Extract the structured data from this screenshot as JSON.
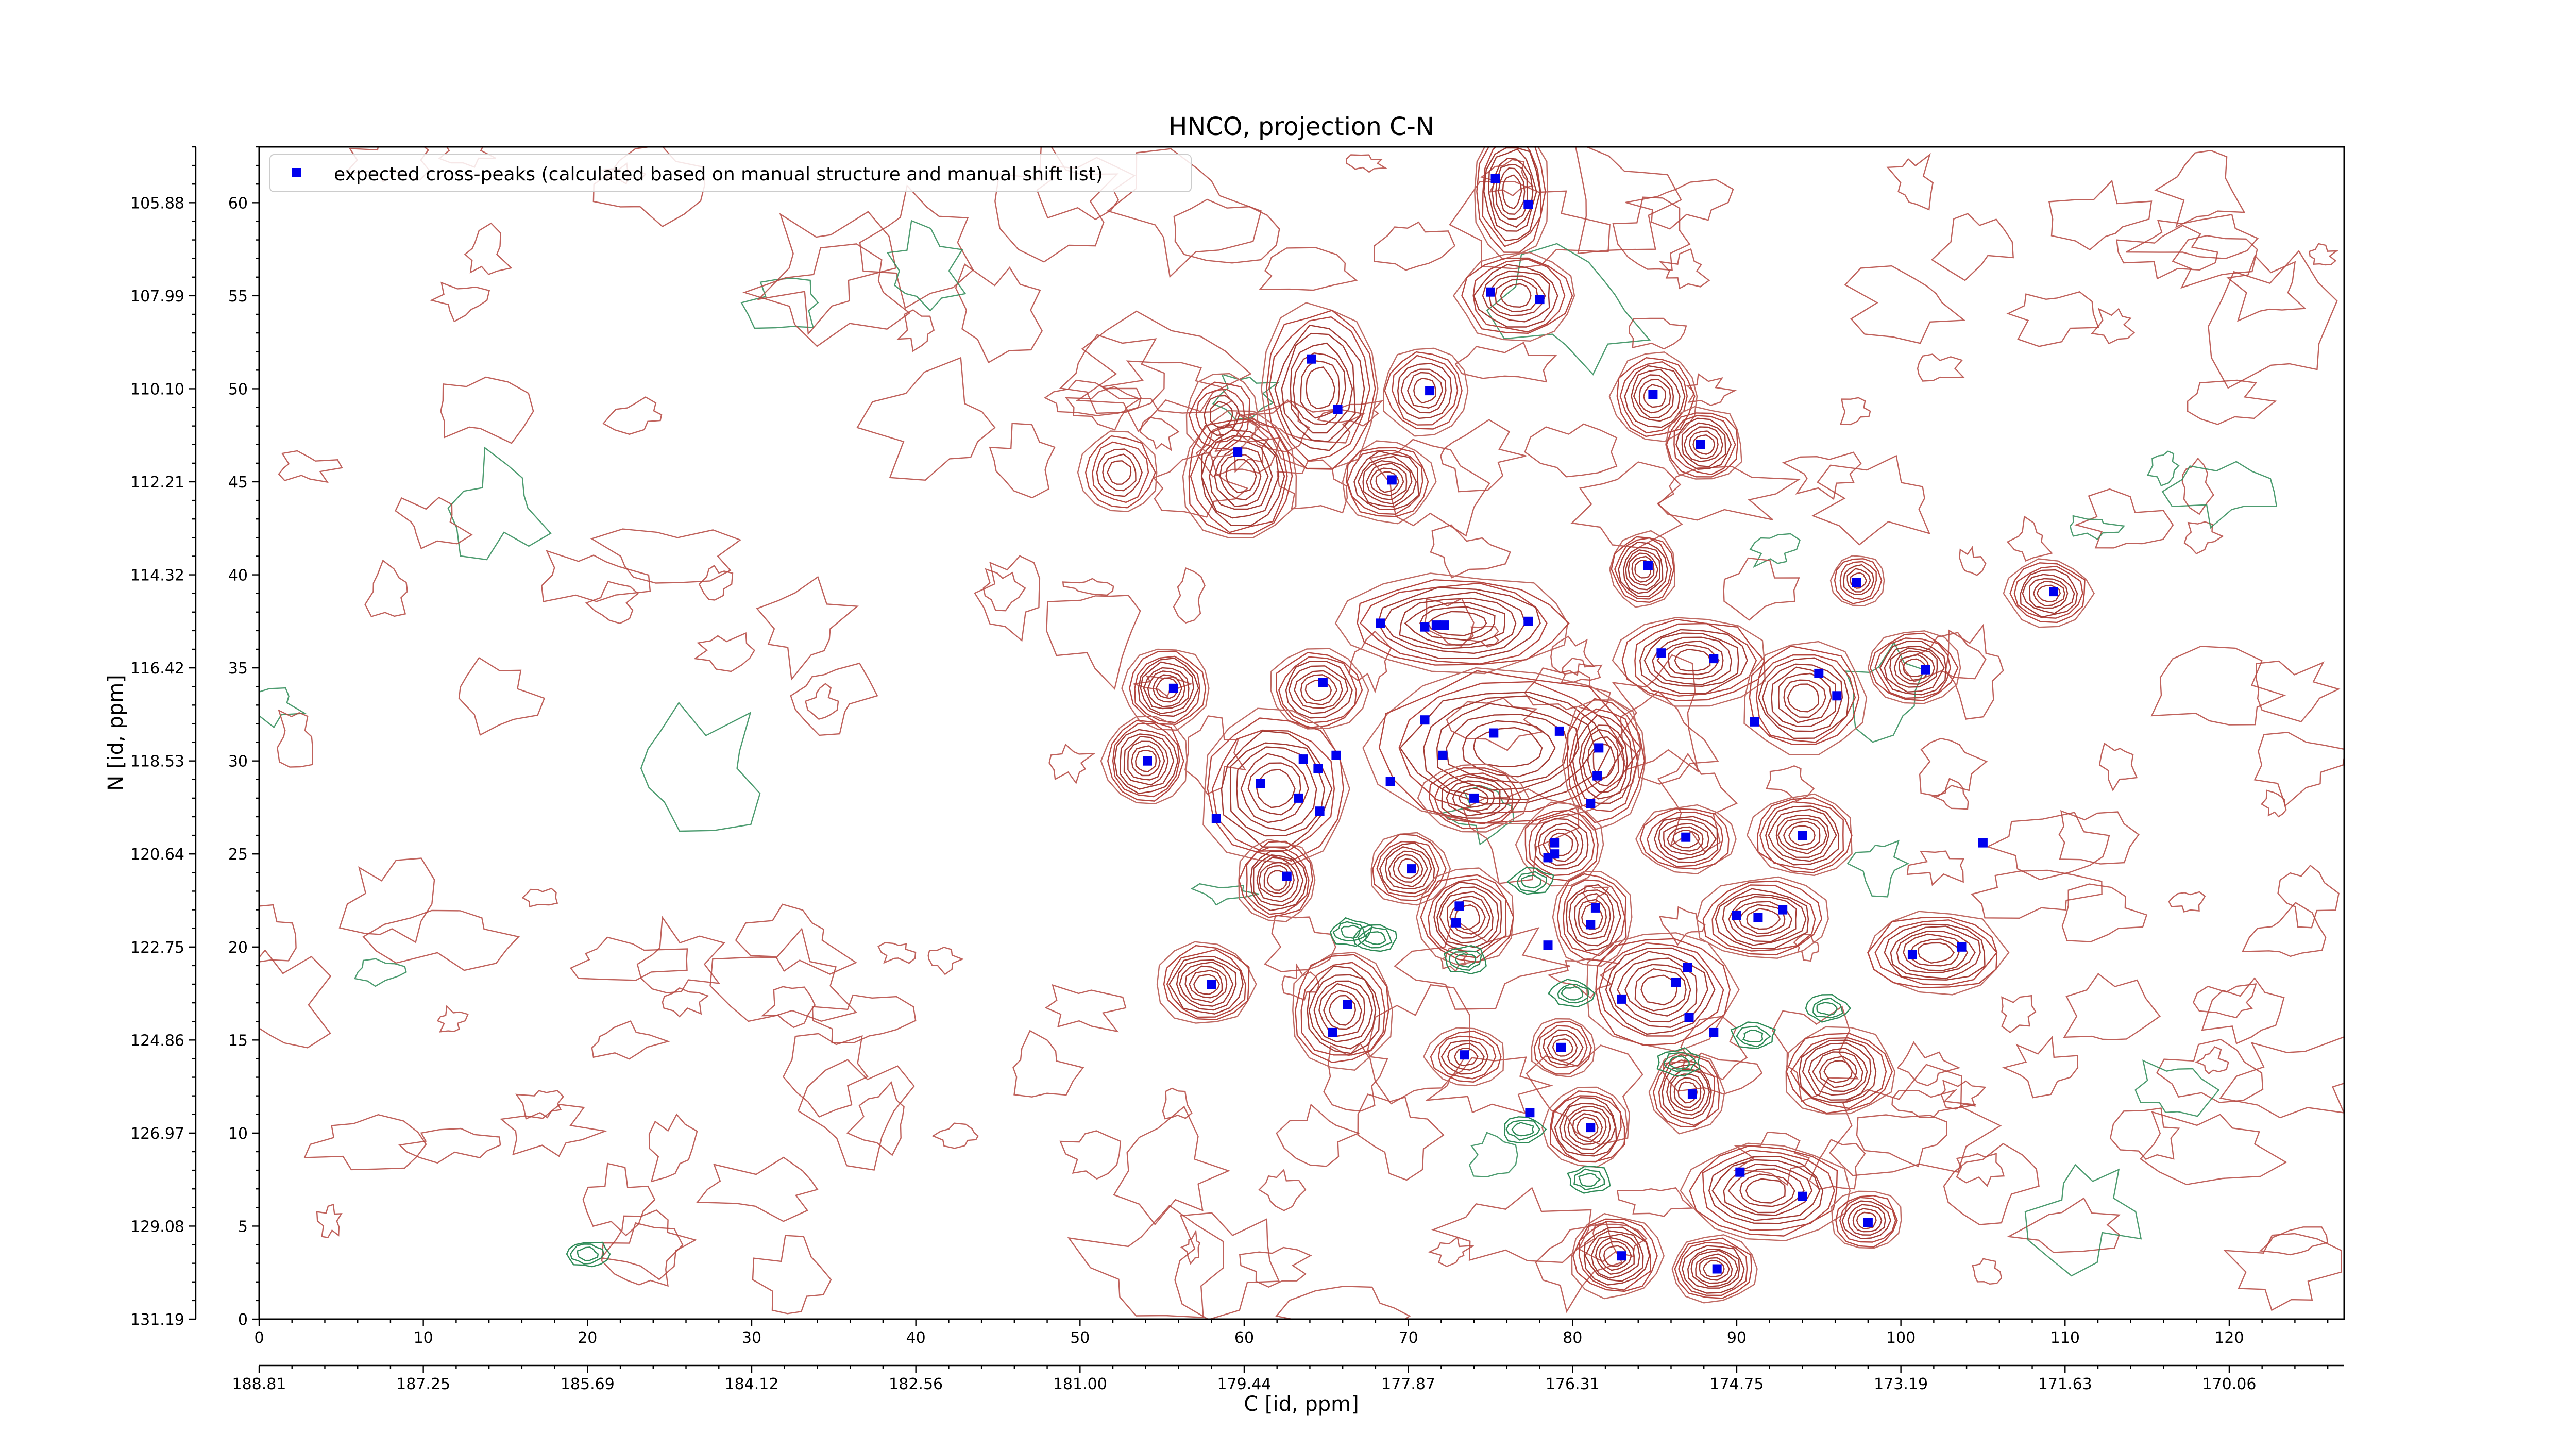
{
  "chart_data": {
    "type": "scatter",
    "title": "HNCO, projection C-N",
    "xlabel": "C [id, ppm]",
    "ylabel": "N [id, ppm]",
    "xlim": [
      0,
      127
    ],
    "ylim": [
      0,
      63
    ],
    "x_ticks": [
      0,
      10,
      20,
      30,
      40,
      50,
      60,
      70,
      80,
      90,
      100,
      110,
      120
    ],
    "x_ppm_labels": [
      "188.81",
      "187.25",
      "185.69",
      "184.12",
      "182.56",
      "181.00",
      "179.44",
      "177.87",
      "176.31",
      "174.75",
      "173.19",
      "171.63",
      "170.06"
    ],
    "y_ticks": [
      0,
      5,
      10,
      15,
      20,
      25,
      30,
      35,
      40,
      45,
      50,
      55,
      60
    ],
    "y_ppm_labels": [
      "131.19",
      "129.08",
      "126.97",
      "124.86",
      "122.75",
      "120.64",
      "118.53",
      "116.42",
      "114.32",
      "112.21",
      "110.10",
      "107.99",
      "105.88"
    ],
    "grid": false,
    "legend_position": "top-left",
    "series": [
      {
        "name": "expected cross-peaks (calculated based on manual structure and manual shift list)",
        "color": "#0000ee",
        "marker": "square",
        "points": [
          [
            75.3,
            61.3
          ],
          [
            77.3,
            59.9
          ],
          [
            75.0,
            55.2
          ],
          [
            78.0,
            54.8
          ],
          [
            64.1,
            51.6
          ],
          [
            65.7,
            48.9
          ],
          [
            71.3,
            49.9
          ],
          [
            84.9,
            49.7
          ],
          [
            87.8,
            47.0
          ],
          [
            59.6,
            46.6
          ],
          [
            69.0,
            45.1
          ],
          [
            84.6,
            40.5
          ],
          [
            97.3,
            39.6
          ],
          [
            109.3,
            39.1
          ],
          [
            68.3,
            37.4
          ],
          [
            71.0,
            37.2
          ],
          [
            71.7,
            37.3
          ],
          [
            72.2,
            37.3
          ],
          [
            77.3,
            37.5
          ],
          [
            85.4,
            35.8
          ],
          [
            88.6,
            35.5
          ],
          [
            95.0,
            34.7
          ],
          [
            101.5,
            34.9
          ],
          [
            55.7,
            33.9
          ],
          [
            64.8,
            34.2
          ],
          [
            96.1,
            33.5
          ],
          [
            91.1,
            32.1
          ],
          [
            71.0,
            32.2
          ],
          [
            75.2,
            31.5
          ],
          [
            79.2,
            31.6
          ],
          [
            81.6,
            30.7
          ],
          [
            54.1,
            30.0
          ],
          [
            61.0,
            28.8
          ],
          [
            63.6,
            30.1
          ],
          [
            64.5,
            29.6
          ],
          [
            65.6,
            30.3
          ],
          [
            68.9,
            28.9
          ],
          [
            72.1,
            30.3
          ],
          [
            81.5,
            29.2
          ],
          [
            63.3,
            28.0
          ],
          [
            64.6,
            27.3
          ],
          [
            58.3,
            26.9
          ],
          [
            74.0,
            28.0
          ],
          [
            81.1,
            27.7
          ],
          [
            78.9,
            25.6
          ],
          [
            78.5,
            24.8
          ],
          [
            78.9,
            25.0
          ],
          [
            86.9,
            25.9
          ],
          [
            94.0,
            26.0
          ],
          [
            105.0,
            25.6
          ],
          [
            62.6,
            23.8
          ],
          [
            70.2,
            24.2
          ],
          [
            73.1,
            22.2
          ],
          [
            72.9,
            21.3
          ],
          [
            81.4,
            22.1
          ],
          [
            81.1,
            21.2
          ],
          [
            90.0,
            21.7
          ],
          [
            91.3,
            21.6
          ],
          [
            92.8,
            22.0
          ],
          [
            78.5,
            20.1
          ],
          [
            100.7,
            19.6
          ],
          [
            103.7,
            20.0
          ],
          [
            58.0,
            18.0
          ],
          [
            87.0,
            18.9
          ],
          [
            86.3,
            18.1
          ],
          [
            83.0,
            17.2
          ],
          [
            66.3,
            16.9
          ],
          [
            65.4,
            15.4
          ],
          [
            87.1,
            16.2
          ],
          [
            88.6,
            15.4
          ],
          [
            73.4,
            14.2
          ],
          [
            79.3,
            14.6
          ],
          [
            87.3,
            12.1
          ],
          [
            77.4,
            11.1
          ],
          [
            81.1,
            10.3
          ],
          [
            90.2,
            7.9
          ],
          [
            94.0,
            6.6
          ],
          [
            98.0,
            5.2
          ],
          [
            83.0,
            3.4
          ],
          [
            88.8,
            2.7
          ]
        ]
      }
    ],
    "contours": {
      "positive_color": "#b5463f",
      "negative_color": "#2e8b57",
      "peak_clusters": [
        [
          76.3,
          60.6,
          2.3,
          3.6,
          9
        ],
        [
          76.6,
          55.0,
          3.6,
          2.4,
          8
        ],
        [
          64.6,
          50.0,
          3.6,
          4.6,
          9
        ],
        [
          71.0,
          49.9,
          2.6,
          2.4,
          7
        ],
        [
          85.0,
          49.6,
          2.6,
          2.4,
          8
        ],
        [
          88.0,
          47.0,
          2.4,
          2.0,
          8
        ],
        [
          59.8,
          45.3,
          3.6,
          3.6,
          9
        ],
        [
          52.4,
          45.5,
          2.4,
          2.2,
          6
        ],
        [
          68.7,
          45.0,
          2.8,
          2.2,
          9
        ],
        [
          58.6,
          48.6,
          2.2,
          2.2,
          5
        ],
        [
          84.3,
          40.3,
          2.0,
          2.0,
          9
        ],
        [
          97.4,
          39.7,
          1.6,
          1.4,
          6
        ],
        [
          109.0,
          39.0,
          2.6,
          1.8,
          8
        ],
        [
          73.0,
          37.4,
          7.0,
          2.6,
          9
        ],
        [
          87.3,
          35.4,
          4.6,
          2.4,
          9
        ],
        [
          94.1,
          33.4,
          3.8,
          3.0,
          9
        ],
        [
          100.8,
          35.0,
          2.8,
          2.0,
          9
        ],
        [
          55.3,
          33.9,
          2.6,
          2.2,
          9
        ],
        [
          64.5,
          33.8,
          3.0,
          2.2,
          8
        ],
        [
          76.0,
          30.7,
          8.5,
          4.4,
          9
        ],
        [
          54.0,
          30.0,
          2.6,
          2.4,
          9
        ],
        [
          61.9,
          28.5,
          4.6,
          4.2,
          9
        ],
        [
          81.9,
          30.0,
          2.6,
          3.6,
          8
        ],
        [
          74.0,
          28.0,
          3.2,
          1.8,
          7
        ],
        [
          79.3,
          25.5,
          2.6,
          2.2,
          7
        ],
        [
          86.9,
          25.8,
          3.0,
          1.8,
          8
        ],
        [
          94.0,
          26.0,
          3.2,
          2.2,
          9
        ],
        [
          62.0,
          23.6,
          2.4,
          2.2,
          9
        ],
        [
          70.0,
          24.2,
          2.4,
          2.0,
          8
        ],
        [
          73.6,
          21.6,
          3.0,
          2.6,
          9
        ],
        [
          81.2,
          21.6,
          2.4,
          2.6,
          8
        ],
        [
          91.6,
          21.5,
          4.0,
          2.2,
          9
        ],
        [
          102.1,
          19.7,
          4.4,
          2.2,
          9
        ],
        [
          57.7,
          18.0,
          3.0,
          2.2,
          9
        ],
        [
          66.0,
          16.6,
          3.2,
          3.2,
          9
        ],
        [
          85.3,
          17.7,
          4.6,
          3.2,
          9
        ],
        [
          73.5,
          14.1,
          2.4,
          1.6,
          6
        ],
        [
          79.4,
          14.6,
          2.0,
          1.6,
          6
        ],
        [
          87.0,
          12.2,
          2.2,
          2.2,
          8
        ],
        [
          96.2,
          13.3,
          3.4,
          2.4,
          9
        ],
        [
          80.9,
          10.3,
          2.6,
          2.2,
          9
        ],
        [
          91.8,
          6.9,
          5.0,
          2.6,
          9
        ],
        [
          97.9,
          5.3,
          2.2,
          1.6,
          7
        ],
        [
          82.6,
          3.4,
          2.8,
          2.2,
          9
        ],
        [
          88.6,
          2.7,
          2.6,
          1.8,
          9
        ]
      ]
    }
  }
}
